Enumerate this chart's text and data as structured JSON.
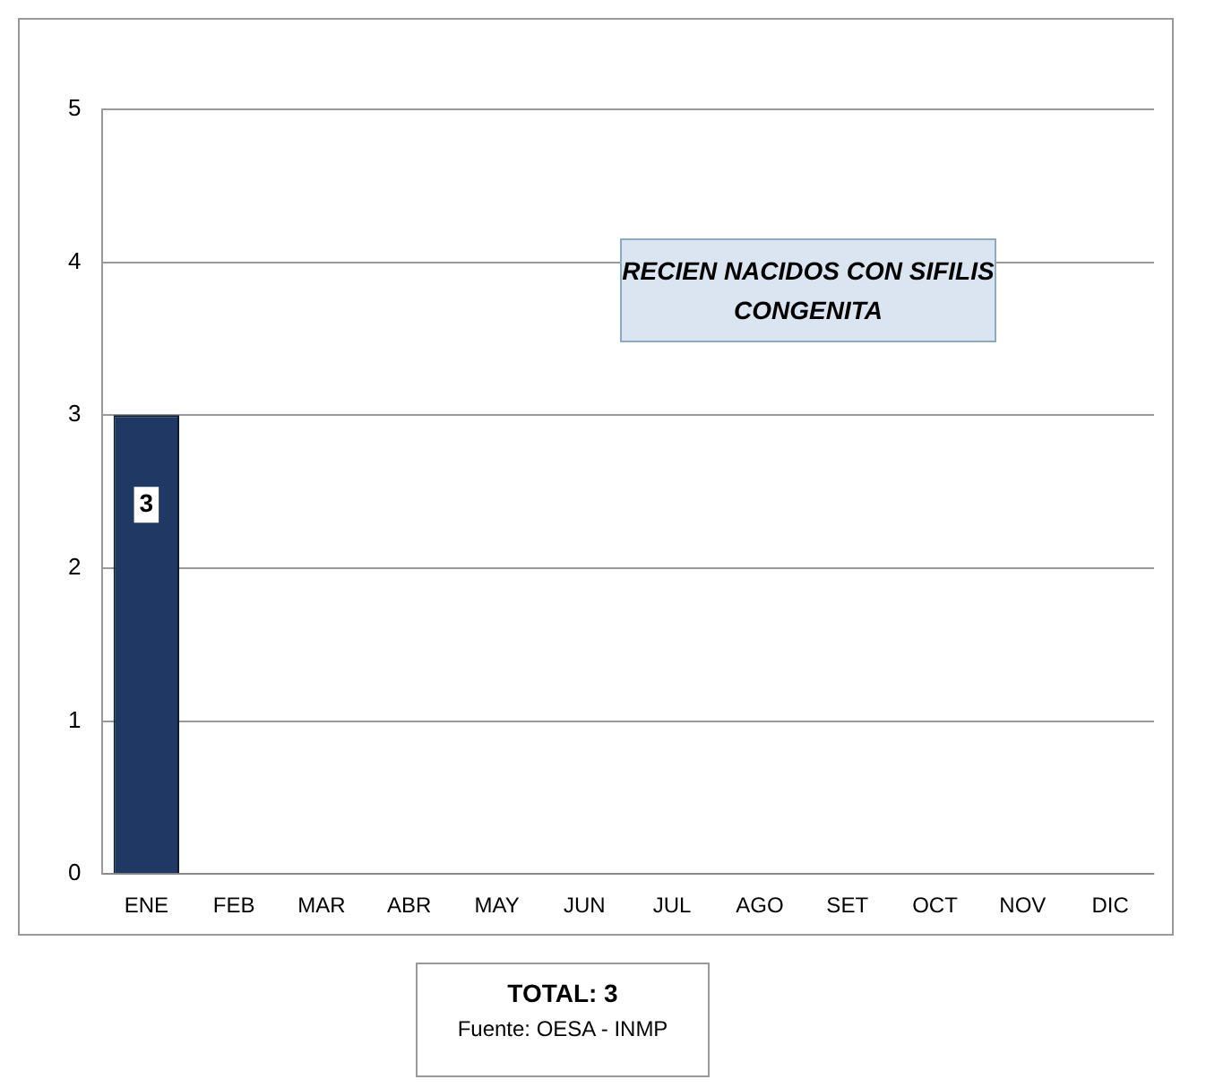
{
  "chart_data": {
    "type": "bar",
    "title": "RECIEN NACIDOS CON SIFILIS CONGENITA",
    "categories": [
      "ENE",
      "FEB",
      "MAR",
      "ABR",
      "MAY",
      "JUN",
      "JUL",
      "AGO",
      "SET",
      "OCT",
      "NOV",
      "DIC"
    ],
    "values": [
      3,
      0,
      0,
      0,
      0,
      0,
      0,
      0,
      0,
      0,
      0,
      0
    ],
    "value_labels": [
      "3",
      null,
      null,
      null,
      null,
      null,
      null,
      null,
      null,
      null,
      null,
      null
    ],
    "color": "#1f3864",
    "ylim": [
      0,
      5
    ],
    "yticks": [
      0,
      1,
      2,
      3,
      4,
      5
    ],
    "grid": "y",
    "legend": false,
    "annotations": [
      "TOTAL: 3",
      "Fuente: OESA - INMP"
    ]
  }
}
